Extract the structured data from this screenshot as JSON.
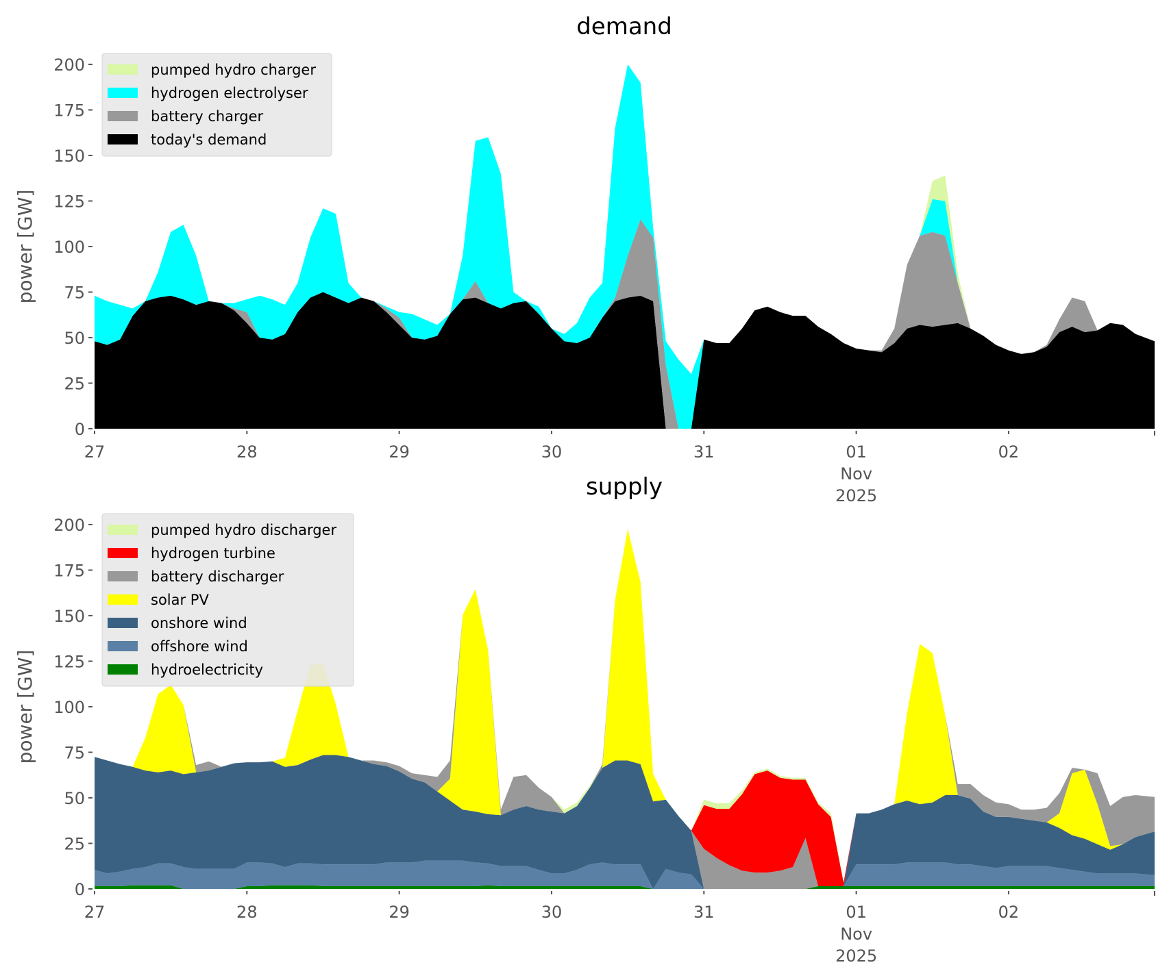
{
  "chart_data": [
    {
      "type": "area",
      "stacked": true,
      "title": "demand",
      "xlabel": "",
      "ylabel": "power [GW]",
      "ylim": [
        0,
        200
      ],
      "yticks": [
        "0",
        "25",
        "50",
        "75",
        "100",
        "125",
        "150",
        "175",
        "200"
      ],
      "xlim_hours": [
        0,
        167
      ],
      "xticks": [
        {
          "label": "27",
          "hour": 0
        },
        {
          "label": "28",
          "hour": 24
        },
        {
          "label": "29",
          "hour": 48
        },
        {
          "label": "30",
          "hour": 72
        },
        {
          "label": "31",
          "hour": 96
        },
        {
          "label": "01",
          "sub": [
            "Nov",
            "2025"
          ],
          "hour": 120
        },
        {
          "label": "02",
          "hour": 144
        }
      ],
      "x_hours_step": 2,
      "legend_position": "top-left",
      "series_cumulative_order": "bottom-to-top",
      "series": [
        {
          "name": "today's demand",
          "color": "#000000",
          "values": [
            48,
            46,
            49,
            62,
            70,
            72,
            73,
            71,
            68,
            70,
            69,
            65,
            58,
            50,
            49,
            52,
            64,
            72,
            75,
            72,
            69,
            72,
            70,
            64,
            57,
            50,
            49,
            51,
            63,
            71,
            72,
            69,
            66,
            69,
            70,
            63,
            55,
            48,
            47,
            50,
            61,
            70,
            72,
            73,
            70,
            0,
            0,
            0,
            49,
            47,
            47,
            55,
            65,
            67,
            64,
            62,
            62,
            56,
            52,
            47,
            44,
            43,
            42,
            47,
            55,
            57,
            56,
            57,
            58,
            55,
            51,
            46,
            43,
            41,
            42,
            45,
            53,
            56,
            53,
            54,
            58,
            57,
            52,
            48
          ]
        },
        {
          "name": "battery charger",
          "color": "#999999",
          "values": [
            0,
            0,
            0,
            0,
            0,
            0,
            0,
            0,
            0,
            0,
            0,
            1,
            6,
            0,
            0,
            0,
            0,
            0,
            0,
            0,
            0,
            0,
            0,
            2,
            4,
            0,
            0,
            0,
            0,
            0,
            9,
            0,
            0,
            0,
            0,
            0,
            0,
            0,
            0,
            0,
            0,
            2,
            23,
            42,
            35,
            35,
            0,
            0,
            0,
            0,
            0,
            0,
            0,
            0,
            0,
            0,
            0,
            0,
            0,
            0,
            0,
            0,
            1,
            8,
            35,
            49,
            52,
            49,
            22,
            0,
            0,
            0,
            0,
            0,
            0,
            1,
            7,
            16,
            17,
            0,
            0,
            0,
            0,
            0
          ]
        },
        {
          "name": "hydrogen electrolyser",
          "color": "#00ffff",
          "values": [
            25,
            24,
            19,
            4,
            0,
            14,
            35,
            41,
            27,
            0,
            0,
            3,
            7,
            23,
            22,
            16,
            16,
            33,
            46,
            46,
            11,
            0,
            0,
            1,
            3,
            13,
            11,
            6,
            0,
            24,
            77,
            91,
            74,
            6,
            0,
            4,
            0,
            4,
            11,
            22,
            19,
            93,
            105,
            75,
            5,
            13,
            38,
            30,
            0,
            0,
            0,
            0,
            0,
            0,
            0,
            0,
            0,
            0,
            0,
            0,
            0,
            0,
            0,
            0,
            0,
            0,
            18,
            19,
            0,
            0,
            0,
            0,
            0,
            0,
            0,
            0,
            0,
            0,
            0,
            0,
            0,
            0,
            0,
            0
          ]
        },
        {
          "name": "pumped hydro charger",
          "color": "#d9f7a4",
          "values": [
            0,
            0,
            0,
            0,
            0,
            0,
            0,
            0,
            0,
            0,
            0,
            0,
            0,
            0,
            0,
            0,
            0,
            0,
            0,
            0,
            0,
            0,
            0,
            0,
            0,
            0,
            0,
            0,
            0,
            0,
            0,
            0,
            0,
            0,
            0,
            0,
            0,
            0,
            0,
            0,
            0,
            0,
            0,
            0,
            0,
            0,
            0,
            0,
            0,
            0,
            0,
            0,
            0,
            0,
            0,
            0,
            0,
            0,
            0,
            0,
            0,
            0,
            0,
            0,
            0,
            0,
            10,
            14,
            5,
            0,
            0,
            0,
            0,
            0,
            0,
            0,
            0,
            0,
            0,
            0,
            0,
            0,
            0,
            0
          ]
        }
      ],
      "legend": [
        "pumped hydro charger",
        "hydrogen electrolyser",
        "battery charger",
        "today's demand"
      ]
    },
    {
      "type": "area",
      "stacked": true,
      "title": "supply",
      "xlabel": "",
      "ylabel": "power [GW]",
      "ylim": [
        0,
        200
      ],
      "yticks": [
        "0",
        "25",
        "50",
        "75",
        "100",
        "125",
        "150",
        "175",
        "200"
      ],
      "xlim_hours": [
        0,
        167
      ],
      "xticks": [
        {
          "label": "27",
          "hour": 0
        },
        {
          "label": "28",
          "hour": 24
        },
        {
          "label": "29",
          "hour": 48
        },
        {
          "label": "30",
          "hour": 72
        },
        {
          "label": "31",
          "hour": 96
        },
        {
          "label": "01",
          "sub": [
            "Nov",
            "2025"
          ],
          "hour": 120
        },
        {
          "label": "02",
          "hour": 144
        }
      ],
      "x_hours_step": 2,
      "legend_position": "top-left",
      "series_cumulative_order": "bottom-to-top",
      "series": [
        {
          "name": "hydroelectricity",
          "color": "#008000",
          "values": [
            1.5,
            1.5,
            1.5,
            2,
            2,
            2,
            2,
            0,
            0,
            0,
            0,
            0,
            1.5,
            1.5,
            2,
            2,
            2,
            2,
            1.5,
            1.5,
            1.5,
            1.5,
            1.5,
            1.5,
            1.5,
            1.5,
            1.5,
            1.5,
            1.5,
            1.5,
            1.5,
            2,
            1.5,
            1.5,
            1.5,
            1.5,
            1.5,
            1.5,
            1.5,
            1.5,
            1.5,
            1.5,
            1.5,
            1.5,
            0,
            0,
            0,
            0,
            0,
            0,
            0,
            0,
            0,
            0,
            0,
            0,
            0,
            1.5,
            1.5,
            1.5,
            1.5,
            1.5,
            1.5,
            1.5,
            1.5,
            1.5,
            1.5,
            1.5,
            1.5,
            1.5,
            1.5,
            1.5,
            1.5,
            1.5,
            1.5,
            1.5,
            1.5,
            1.5,
            1.5,
            1.5,
            1.5,
            1.5,
            1.5,
            1.5
          ]
        },
        {
          "name": "offshore wind",
          "color": "#5b80a5",
          "values": [
            9,
            7,
            8,
            9,
            10,
            12,
            12,
            12,
            11,
            11,
            11,
            11,
            13,
            13,
            12,
            10,
            12,
            12,
            12,
            12,
            12,
            12,
            12,
            13,
            13,
            13,
            14,
            14,
            14,
            14,
            13,
            12,
            11,
            11,
            11,
            9,
            7,
            7,
            9,
            12,
            13,
            12,
            12,
            12,
            0,
            11,
            9,
            8,
            0,
            0,
            0,
            0,
            0,
            0,
            0,
            0,
            0,
            0,
            0,
            0,
            12,
            12,
            12,
            12,
            13,
            13,
            13,
            13,
            12,
            12,
            11,
            10,
            11,
            11,
            11,
            11,
            10,
            9,
            8,
            7,
            7,
            7,
            7,
            6
          ]
        },
        {
          "name": "onshore wind",
          "color": "#3b6182",
          "values": [
            62,
            62,
            59,
            56,
            53,
            50,
            51,
            51,
            53,
            54,
            56,
            58,
            55,
            55,
            56,
            55,
            54,
            57,
            60,
            60,
            59,
            57,
            55,
            53,
            50,
            46,
            43,
            38,
            33,
            28,
            28,
            27,
            28,
            31,
            33,
            33,
            34,
            33,
            35,
            42,
            52,
            57,
            57,
            55,
            48,
            38,
            31,
            24,
            0,
            0,
            0,
            0,
            0,
            0,
            0,
            0,
            0,
            0,
            0,
            0,
            28,
            28,
            30,
            33,
            34,
            32,
            33,
            37,
            38,
            36,
            30,
            28,
            27,
            26,
            25,
            24,
            22,
            19,
            18,
            16,
            13,
            16,
            20,
            24
          ]
        },
        {
          "name": "solar PV",
          "color": "#ffff00",
          "values": [
            0,
            0,
            0,
            0,
            18,
            43,
            47,
            38,
            0,
            0,
            0,
            0,
            0,
            0,
            0,
            5,
            30,
            52,
            50,
            28,
            0,
            0,
            0,
            0,
            0,
            0,
            0,
            0,
            12,
            107,
            122,
            90,
            0,
            0,
            0,
            0,
            0,
            0,
            0,
            0,
            0,
            88,
            127,
            100,
            15,
            0,
            0,
            0,
            0,
            0,
            0,
            0,
            0,
            0,
            0,
            0,
            0,
            0,
            0,
            0,
            0,
            0,
            0,
            0,
            48,
            88,
            82,
            44,
            0,
            0,
            0,
            0,
            0,
            0,
            0,
            0,
            8,
            34,
            38,
            22,
            2,
            0,
            0,
            0
          ]
        },
        {
          "name": "battery discharger",
          "color": "#999999",
          "values": [
            0,
            0,
            0,
            0,
            0,
            0,
            0,
            0,
            4,
            5,
            0,
            0,
            0,
            0,
            0,
            0,
            0,
            0,
            0,
            0,
            0,
            0,
            2,
            2,
            3,
            3,
            4,
            8,
            10,
            0,
            0,
            0,
            3,
            18,
            17,
            12,
            8,
            0,
            0,
            0,
            2,
            0,
            0,
            0,
            0,
            0,
            0,
            0,
            22,
            17,
            13,
            10,
            9,
            9,
            10,
            12,
            28,
            0,
            0,
            0,
            0,
            0,
            0,
            0,
            0,
            0,
            0,
            0,
            6,
            8,
            9,
            8,
            7,
            5,
            6,
            8,
            11,
            3,
            0,
            17,
            22,
            26,
            23,
            19
          ]
        },
        {
          "name": "hydrogen turbine",
          "color": "#ff0000",
          "values": [
            0,
            0,
            0,
            0,
            0,
            0,
            0,
            0,
            0,
            0,
            0,
            0,
            0,
            0,
            0,
            0,
            0,
            0,
            0,
            0,
            0,
            0,
            0,
            0,
            0,
            0,
            0,
            0,
            0,
            0,
            0,
            0,
            0,
            0,
            0,
            0,
            0,
            0,
            0,
            0,
            0,
            0,
            0,
            0,
            0,
            0,
            0,
            0,
            24,
            27,
            31,
            42,
            54,
            56,
            51,
            48,
            32,
            45,
            38,
            2,
            0,
            0,
            0,
            0,
            0,
            0,
            0,
            0,
            0,
            0,
            0,
            0,
            0,
            0,
            0,
            0,
            0,
            0,
            0,
            0,
            0,
            0,
            0,
            0
          ]
        },
        {
          "name": "pumped hydro discharger",
          "color": "#d9f7a4",
          "values": [
            0,
            0,
            0,
            0,
            0,
            0,
            0,
            0,
            0,
            0,
            0,
            0,
            0,
            0,
            0,
            0,
            0,
            0,
            0,
            0,
            0,
            0,
            0,
            0,
            0,
            0,
            0,
            0,
            0,
            0,
            0,
            0,
            0,
            0,
            0,
            0,
            0,
            2,
            2,
            1,
            0,
            0,
            0,
            0,
            0,
            0,
            0,
            0,
            3,
            3,
            3,
            2,
            1,
            1,
            1,
            1,
            1,
            1,
            2,
            0,
            0,
            0,
            0,
            0,
            0,
            0,
            0,
            0,
            0,
            0,
            0,
            0,
            0,
            0,
            0,
            0,
            0,
            0,
            0,
            0,
            0,
            0,
            0,
            0
          ]
        }
      ],
      "legend": [
        "pumped hydro discharger",
        "hydrogen turbine",
        "battery discharger",
        "solar PV",
        "onshore wind",
        "offshore wind",
        "hydroelectricity"
      ]
    }
  ]
}
